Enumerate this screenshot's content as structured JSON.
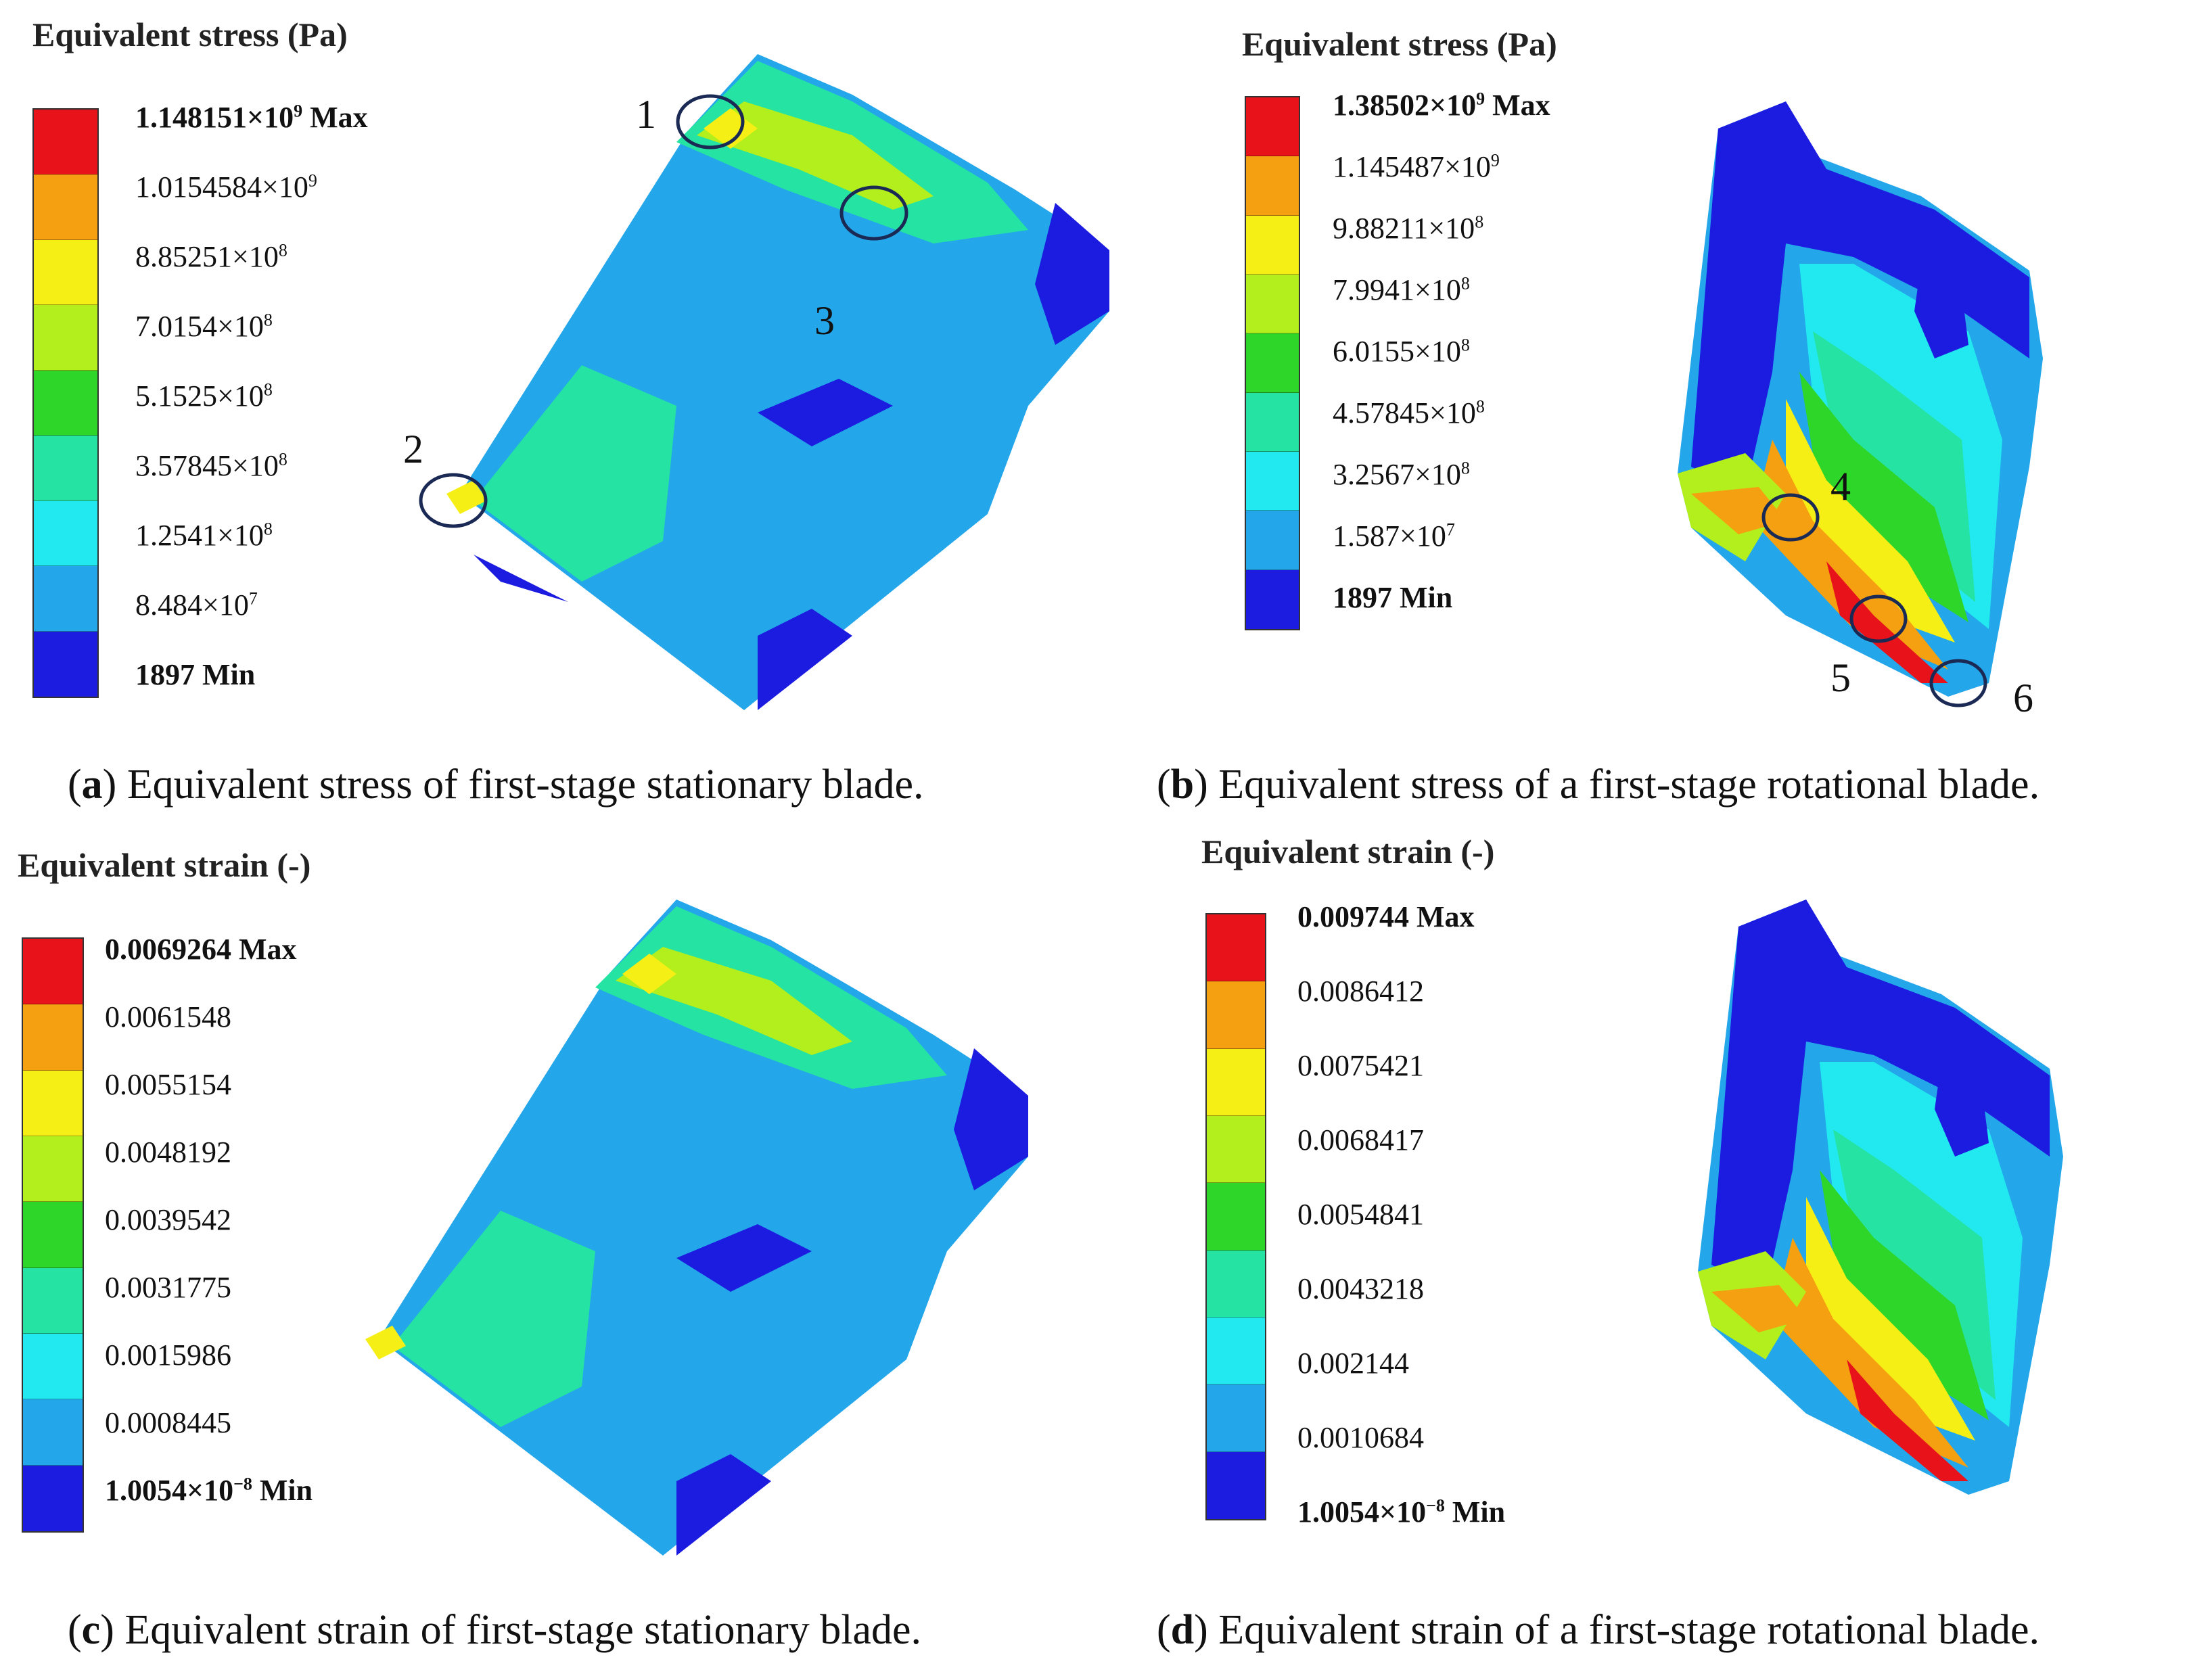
{
  "colors": {
    "scale": [
      "#e8121a",
      "#f5a010",
      "#f6ef16",
      "#b3ef1c",
      "#2fd62a",
      "#25e3a2",
      "#21e9ef",
      "#23a6ea",
      "#1c1be0"
    ]
  },
  "panels": {
    "a": {
      "legend_title": "Equivalent stress (Pa)",
      "levels": [
        {
          "mant": "1.148151×10",
          "exp": "9",
          "suffix": " Max"
        },
        {
          "mant": "1.0154584×10",
          "exp": "9",
          "suffix": ""
        },
        {
          "mant": "8.85251×10",
          "exp": "8",
          "suffix": ""
        },
        {
          "mant": "7.0154×10",
          "exp": "8",
          "suffix": ""
        },
        {
          "mant": "5.1525×10",
          "exp": "8",
          "suffix": ""
        },
        {
          "mant": "3.57845×10",
          "exp": "8",
          "suffix": ""
        },
        {
          "mant": "1.2541×10",
          "exp": "8",
          "suffix": ""
        },
        {
          "mant": "8.484×10",
          "exp": "7",
          "suffix": ""
        },
        {
          "mant": "1897",
          "exp": "",
          "suffix": "  Min"
        }
      ],
      "markers": [
        "1",
        "2",
        "3"
      ],
      "caption_letter": "a",
      "caption_text": " Equivalent stress of first-stage stationary blade."
    },
    "b": {
      "legend_title": "Equivalent stress (Pa)",
      "levels": [
        {
          "mant": "1.38502×10",
          "exp": "9",
          "suffix": " Max"
        },
        {
          "mant": "1.145487×10",
          "exp": "9",
          "suffix": ""
        },
        {
          "mant": "9.88211×10",
          "exp": "8",
          "suffix": ""
        },
        {
          "mant": "7.9941×10",
          "exp": "8",
          "suffix": ""
        },
        {
          "mant": "6.0155×10",
          "exp": "8",
          "suffix": ""
        },
        {
          "mant": "4.57845×10",
          "exp": "8",
          "suffix": ""
        },
        {
          "mant": "3.2567×10",
          "exp": "8",
          "suffix": ""
        },
        {
          "mant": "1.587×10",
          "exp": "7",
          "suffix": ""
        },
        {
          "mant": "1897",
          "exp": "",
          "suffix": "  Min"
        }
      ],
      "markers": [
        "4",
        "5",
        "6"
      ],
      "caption_letter": "b",
      "caption_text": " Equivalent stress of a first-stage rotational blade."
    },
    "c": {
      "legend_title": "Equivalent strain (-)",
      "levels": [
        {
          "mant": "0.0069264",
          "exp": "",
          "suffix": "  Max"
        },
        {
          "mant": "0.0061548",
          "exp": "",
          "suffix": ""
        },
        {
          "mant": "0.0055154",
          "exp": "",
          "suffix": ""
        },
        {
          "mant": "0.0048192",
          "exp": "",
          "suffix": ""
        },
        {
          "mant": "0.0039542",
          "exp": "",
          "suffix": ""
        },
        {
          "mant": "0.0031775",
          "exp": "",
          "suffix": ""
        },
        {
          "mant": "0.0015986",
          "exp": "",
          "suffix": ""
        },
        {
          "mant": "0.0008445",
          "exp": "",
          "suffix": ""
        },
        {
          "mant": "1.0054×10",
          "exp": "−8",
          "suffix": "  Min"
        }
      ],
      "caption_letter": "c",
      "caption_text": " Equivalent strain of first-stage stationary blade."
    },
    "d": {
      "legend_title": "Equivalent strain (-)",
      "levels": [
        {
          "mant": "0.009744",
          "exp": "",
          "suffix": "  Max"
        },
        {
          "mant": "0.0086412",
          "exp": "",
          "suffix": ""
        },
        {
          "mant": "0.0075421",
          "exp": "",
          "suffix": ""
        },
        {
          "mant": "0.0068417",
          "exp": "",
          "suffix": ""
        },
        {
          "mant": "0.0054841",
          "exp": "",
          "suffix": ""
        },
        {
          "mant": "0.0043218",
          "exp": "",
          "suffix": ""
        },
        {
          "mant": "0.002144",
          "exp": "",
          "suffix": ""
        },
        {
          "mant": "0.0010684",
          "exp": "",
          "suffix": ""
        },
        {
          "mant": "1.0054×10",
          "exp": "−8",
          "suffix": "  Min"
        }
      ],
      "caption_letter": "d",
      "caption_text": " Equivalent strain of a first-stage rotational blade."
    }
  }
}
